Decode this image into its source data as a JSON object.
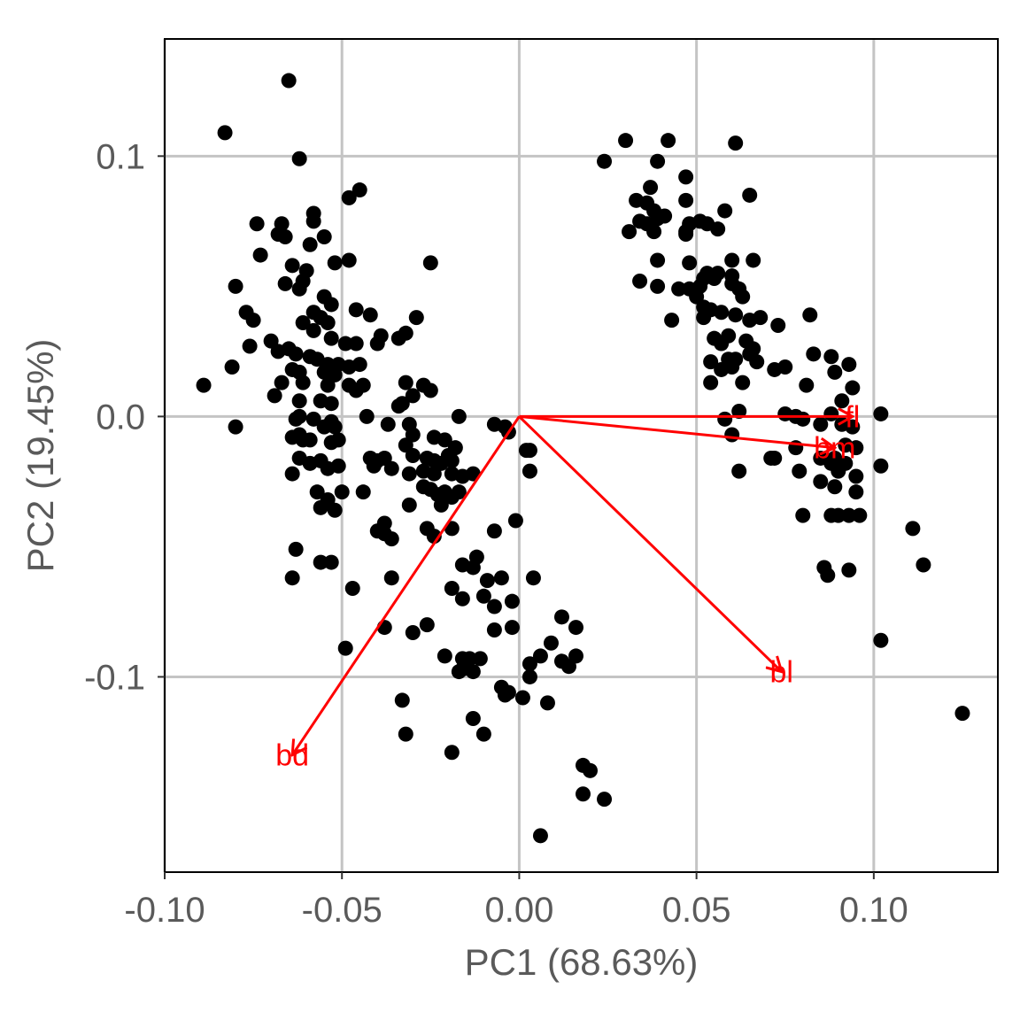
{
  "chart_data": {
    "type": "scatter",
    "title": "",
    "xlabel": "PC1 (68.63%)",
    "ylabel": "PC2 (19.45%)",
    "xlim": [
      -0.1,
      0.135
    ],
    "ylim": [
      -0.175,
      0.145
    ],
    "x_ticks": [
      -0.1,
      -0.05,
      0.0,
      0.05,
      0.1
    ],
    "x_tick_labels": [
      "-0.10",
      "-0.05",
      "0.00",
      "0.05",
      "0.10"
    ],
    "y_ticks": [
      0.1,
      0.0,
      -0.1
    ],
    "y_tick_labels": [
      "0.1",
      "0.0",
      "-0.1"
    ],
    "grid": true,
    "point_color": "#000000",
    "arrow_color": "#ff0000",
    "arrows": [
      {
        "label": "fl",
        "x": 0.094,
        "y": 0.0
      },
      {
        "label": "bm",
        "x": 0.089,
        "y": -0.012
      },
      {
        "label": "bl",
        "x": 0.074,
        "y": -0.098
      },
      {
        "label": "bd",
        "x": -0.064,
        "y": -0.13
      }
    ],
    "points": [
      [
        -0.065,
        0.129
      ],
      [
        -0.083,
        0.109
      ],
      [
        -0.062,
        0.099
      ],
      [
        -0.045,
        0.087
      ],
      [
        -0.048,
        0.084
      ],
      [
        -0.074,
        0.074
      ],
      [
        -0.067,
        0.074
      ],
      [
        -0.058,
        0.078
      ],
      [
        -0.058,
        0.075
      ],
      [
        -0.066,
        0.069
      ],
      [
        -0.068,
        0.07
      ],
      [
        -0.055,
        0.069
      ],
      [
        -0.059,
        0.066
      ],
      [
        -0.073,
        0.062
      ],
      [
        -0.064,
        0.058
      ],
      [
        -0.06,
        0.056
      ],
      [
        -0.052,
        0.059
      ],
      [
        -0.048,
        0.06
      ],
      [
        -0.061,
        0.052
      ],
      [
        -0.062,
        0.049
      ],
      [
        -0.055,
        0.046
      ],
      [
        -0.053,
        0.043
      ],
      [
        -0.08,
        0.05
      ],
      [
        -0.066,
        0.051
      ],
      [
        -0.025,
        0.059
      ],
      [
        -0.077,
        0.04
      ],
      [
        -0.058,
        0.04
      ],
      [
        -0.056,
        0.038
      ],
      [
        -0.054,
        0.036
      ],
      [
        -0.046,
        0.041
      ],
      [
        -0.042,
        0.039
      ],
      [
        -0.029,
        0.038
      ],
      [
        -0.075,
        0.037
      ],
      [
        -0.061,
        0.036
      ],
      [
        -0.058,
        0.033
      ],
      [
        -0.053,
        0.03
      ],
      [
        -0.049,
        0.028
      ],
      [
        -0.046,
        0.028
      ],
      [
        -0.04,
        0.028
      ],
      [
        -0.039,
        0.031
      ],
      [
        -0.032,
        0.032
      ],
      [
        -0.034,
        0.03
      ],
      [
        -0.07,
        0.029
      ],
      [
        -0.065,
        0.026
      ],
      [
        -0.063,
        0.024
      ],
      [
        -0.059,
        0.023
      ],
      [
        -0.057,
        0.022
      ],
      [
        -0.054,
        0.02
      ],
      [
        -0.051,
        0.02
      ],
      [
        -0.048,
        0.019
      ],
      [
        -0.045,
        0.02
      ],
      [
        -0.068,
        0.025
      ],
      [
        -0.076,
        0.027
      ],
      [
        -0.081,
        0.019
      ],
      [
        -0.064,
        0.018
      ],
      [
        -0.062,
        0.017
      ],
      [
        -0.055,
        0.017
      ],
      [
        -0.052,
        0.016
      ],
      [
        -0.067,
        0.013
      ],
      [
        -0.069,
        0.008
      ],
      [
        -0.061,
        0.013
      ],
      [
        -0.054,
        0.012
      ],
      [
        -0.048,
        0.012
      ],
      [
        -0.044,
        0.012
      ],
      [
        -0.046,
        0.01
      ],
      [
        -0.032,
        0.013
      ],
      [
        -0.027,
        0.012
      ],
      [
        -0.025,
        0.01
      ],
      [
        -0.03,
        0.008
      ],
      [
        -0.089,
        0.012
      ],
      [
        -0.062,
        0.006
      ],
      [
        -0.056,
        0.006
      ],
      [
        -0.053,
        0.005
      ],
      [
        -0.034,
        0.004
      ],
      [
        -0.033,
        0.005
      ],
      [
        -0.043,
        0.0
      ],
      [
        -0.062,
        0.0
      ],
      [
        -0.063,
        -0.001
      ],
      [
        -0.058,
        -0.001
      ],
      [
        -0.053,
        -0.002
      ],
      [
        -0.055,
        -0.004
      ],
      [
        -0.052,
        -0.004
      ],
      [
        -0.037,
        -0.003
      ],
      [
        -0.031,
        -0.003
      ],
      [
        -0.017,
        0.0
      ],
      [
        -0.007,
        -0.003
      ],
      [
        -0.004,
        -0.004
      ],
      [
        -0.08,
        -0.004
      ],
      [
        -0.064,
        -0.008
      ],
      [
        -0.062,
        -0.007
      ],
      [
        -0.061,
        -0.009
      ],
      [
        -0.059,
        -0.009
      ],
      [
        -0.053,
        -0.01
      ],
      [
        -0.051,
        -0.009
      ],
      [
        -0.03,
        -0.007
      ],
      [
        -0.032,
        -0.011
      ],
      [
        -0.024,
        -0.008
      ],
      [
        -0.021,
        -0.009
      ],
      [
        -0.018,
        -0.012
      ],
      [
        -0.003,
        -0.006
      ],
      [
        0.002,
        -0.013
      ],
      [
        0.003,
        -0.013
      ],
      [
        -0.062,
        -0.016
      ],
      [
        -0.059,
        -0.018
      ],
      [
        -0.056,
        -0.017
      ],
      [
        -0.054,
        -0.02
      ],
      [
        -0.051,
        -0.019
      ],
      [
        -0.042,
        -0.016
      ],
      [
        -0.04,
        -0.017
      ],
      [
        -0.038,
        -0.016
      ],
      [
        -0.03,
        -0.015
      ],
      [
        -0.026,
        -0.016
      ],
      [
        -0.024,
        -0.017
      ],
      [
        -0.022,
        -0.018
      ],
      [
        -0.019,
        -0.017
      ],
      [
        -0.02,
        -0.015
      ],
      [
        -0.013,
        -0.022
      ],
      [
        -0.064,
        -0.022
      ],
      [
        -0.041,
        -0.019
      ],
      [
        -0.036,
        -0.02
      ],
      [
        -0.031,
        -0.022
      ],
      [
        -0.027,
        -0.021
      ],
      [
        -0.024,
        -0.022
      ],
      [
        -0.019,
        -0.022
      ],
      [
        -0.016,
        -0.023
      ],
      [
        0.003,
        -0.021
      ],
      [
        -0.057,
        -0.029
      ],
      [
        -0.054,
        -0.032
      ],
      [
        -0.052,
        -0.036
      ],
      [
        -0.056,
        -0.035
      ],
      [
        -0.05,
        -0.029
      ],
      [
        -0.044,
        -0.029
      ],
      [
        -0.027,
        -0.027
      ],
      [
        -0.025,
        -0.028
      ],
      [
        -0.023,
        -0.03
      ],
      [
        -0.021,
        -0.029
      ],
      [
        -0.019,
        -0.031
      ],
      [
        -0.017,
        -0.029
      ],
      [
        -0.031,
        -0.034
      ],
      [
        -0.022,
        -0.034
      ],
      [
        -0.038,
        -0.041
      ],
      [
        -0.04,
        -0.044
      ],
      [
        -0.038,
        -0.045
      ],
      [
        -0.036,
        -0.047
      ],
      [
        -0.026,
        -0.043
      ],
      [
        -0.024,
        -0.046
      ],
      [
        -0.019,
        -0.043
      ],
      [
        -0.007,
        -0.044
      ],
      [
        -0.001,
        -0.04
      ],
      [
        -0.063,
        -0.051
      ],
      [
        -0.056,
        -0.056
      ],
      [
        -0.053,
        -0.056
      ],
      [
        -0.036,
        -0.062
      ],
      [
        -0.064,
        -0.062
      ],
      [
        -0.012,
        -0.054
      ],
      [
        -0.016,
        -0.057
      ],
      [
        -0.013,
        -0.058
      ],
      [
        -0.009,
        -0.063
      ],
      [
        -0.005,
        -0.062
      ],
      [
        0.004,
        -0.062
      ],
      [
        -0.047,
        -0.066
      ],
      [
        -0.019,
        -0.066
      ],
      [
        -0.016,
        -0.07
      ],
      [
        -0.01,
        -0.069
      ],
      [
        -0.002,
        -0.071
      ],
      [
        -0.007,
        -0.073
      ],
      [
        0.012,
        -0.077
      ],
      [
        0.016,
        -0.081
      ],
      [
        -0.038,
        -0.081
      ],
      [
        -0.03,
        -0.083
      ],
      [
        -0.026,
        -0.08
      ],
      [
        -0.007,
        -0.082
      ],
      [
        -0.002,
        -0.081
      ],
      [
        0.009,
        -0.087
      ],
      [
        -0.014,
        -0.093
      ],
      [
        -0.021,
        -0.092
      ],
      [
        -0.016,
        -0.093
      ],
      [
        -0.011,
        -0.093
      ],
      [
        0.006,
        -0.092
      ],
      [
        0.012,
        -0.094
      ],
      [
        0.016,
        -0.092
      ],
      [
        -0.049,
        -0.089
      ],
      [
        -0.017,
        -0.098
      ],
      [
        -0.016,
        -0.097
      ],
      [
        -0.013,
        -0.098
      ],
      [
        0.003,
        -0.095
      ],
      [
        0.014,
        -0.096
      ],
      [
        0.003,
        -0.1
      ],
      [
        -0.005,
        -0.104
      ],
      [
        -0.004,
        -0.107
      ],
      [
        -0.003,
        -0.106
      ],
      [
        0.001,
        -0.108
      ],
      [
        0.008,
        -0.11
      ],
      [
        -0.033,
        -0.109
      ],
      [
        -0.013,
        -0.116
      ],
      [
        -0.032,
        -0.122
      ],
      [
        -0.01,
        -0.122
      ],
      [
        -0.019,
        -0.129
      ],
      [
        0.018,
        -0.134
      ],
      [
        0.02,
        -0.136
      ],
      [
        0.018,
        -0.145
      ],
      [
        0.024,
        -0.147
      ],
      [
        0.006,
        -0.161
      ],
      [
        0.024,
        0.098
      ],
      [
        0.03,
        0.106
      ],
      [
        0.042,
        0.106
      ],
      [
        0.061,
        0.105
      ],
      [
        0.039,
        0.098
      ],
      [
        0.047,
        0.092
      ],
      [
        0.037,
        0.088
      ],
      [
        0.033,
        0.083
      ],
      [
        0.036,
        0.082
      ],
      [
        0.047,
        0.083
      ],
      [
        0.065,
        0.085
      ],
      [
        0.038,
        0.079
      ],
      [
        0.039,
        0.076
      ],
      [
        0.041,
        0.077
      ],
      [
        0.034,
        0.075
      ],
      [
        0.036,
        0.074
      ],
      [
        0.048,
        0.074
      ],
      [
        0.051,
        0.075
      ],
      [
        0.053,
        0.074
      ],
      [
        0.047,
        0.071
      ],
      [
        0.058,
        0.079
      ],
      [
        0.031,
        0.071
      ],
      [
        0.038,
        0.071
      ],
      [
        0.047,
        0.07
      ],
      [
        0.056,
        0.072
      ],
      [
        0.039,
        0.06
      ],
      [
        0.048,
        0.059
      ],
      [
        0.06,
        0.06
      ],
      [
        0.066,
        0.06
      ],
      [
        0.053,
        0.055
      ],
      [
        0.055,
        0.053
      ],
      [
        0.06,
        0.054
      ],
      [
        0.034,
        0.052
      ],
      [
        0.039,
        0.05
      ],
      [
        0.045,
        0.049
      ],
      [
        0.048,
        0.049
      ],
      [
        0.051,
        0.05
      ],
      [
        0.052,
        0.053
      ],
      [
        0.056,
        0.055
      ],
      [
        0.06,
        0.051
      ],
      [
        0.062,
        0.049
      ],
      [
        0.063,
        0.046
      ],
      [
        0.05,
        0.046
      ],
      [
        0.052,
        0.042
      ],
      [
        0.054,
        0.041
      ],
      [
        0.043,
        0.037
      ],
      [
        0.052,
        0.038
      ],
      [
        0.057,
        0.04
      ],
      [
        0.061,
        0.039
      ],
      [
        0.065,
        0.037
      ],
      [
        0.068,
        0.038
      ],
      [
        0.073,
        0.035
      ],
      [
        0.082,
        0.039
      ],
      [
        0.055,
        0.03
      ],
      [
        0.057,
        0.028
      ],
      [
        0.059,
        0.031
      ],
      [
        0.064,
        0.029
      ],
      [
        0.066,
        0.026
      ],
      [
        0.059,
        0.022
      ],
      [
        0.061,
        0.022
      ],
      [
        0.065,
        0.024
      ],
      [
        0.054,
        0.021
      ],
      [
        0.067,
        0.021
      ],
      [
        0.057,
        0.018
      ],
      [
        0.06,
        0.019
      ],
      [
        0.072,
        0.018
      ],
      [
        0.075,
        0.019
      ],
      [
        0.083,
        0.024
      ],
      [
        0.088,
        0.023
      ],
      [
        0.093,
        0.02
      ],
      [
        0.089,
        0.017
      ],
      [
        0.054,
        0.013
      ],
      [
        0.063,
        0.013
      ],
      [
        0.081,
        0.012
      ],
      [
        0.094,
        0.011
      ],
      [
        0.091,
        0.006
      ],
      [
        0.058,
        -0.001
      ],
      [
        0.062,
        0.002
      ],
      [
        0.075,
        0.001
      ],
      [
        0.078,
        0.0
      ],
      [
        0.088,
        0.001
      ],
      [
        0.102,
        0.001
      ],
      [
        0.08,
        -0.001
      ],
      [
        0.085,
        -0.003
      ],
      [
        0.091,
        -0.003
      ],
      [
        0.094,
        -0.004
      ],
      [
        0.06,
        -0.007
      ],
      [
        0.078,
        -0.012
      ],
      [
        0.092,
        -0.011
      ],
      [
        0.095,
        -0.012
      ],
      [
        0.089,
        -0.016
      ],
      [
        0.071,
        -0.016
      ],
      [
        0.072,
        -0.016
      ],
      [
        0.085,
        -0.016
      ],
      [
        0.088,
        -0.018
      ],
      [
        0.092,
        -0.018
      ],
      [
        0.102,
        -0.019
      ],
      [
        0.062,
        -0.021
      ],
      [
        0.079,
        -0.021
      ],
      [
        0.09,
        -0.021
      ],
      [
        0.095,
        -0.023
      ],
      [
        0.085,
        -0.025
      ],
      [
        0.089,
        -0.027
      ],
      [
        0.095,
        -0.029
      ],
      [
        0.08,
        -0.038
      ],
      [
        0.088,
        -0.038
      ],
      [
        0.09,
        -0.038
      ],
      [
        0.093,
        -0.038
      ],
      [
        0.096,
        -0.038
      ],
      [
        0.111,
        -0.043
      ],
      [
        0.114,
        -0.057
      ],
      [
        0.086,
        -0.058
      ],
      [
        0.087,
        -0.061
      ],
      [
        0.093,
        -0.059
      ],
      [
        0.102,
        -0.086
      ],
      [
        0.125,
        -0.114
      ]
    ]
  }
}
